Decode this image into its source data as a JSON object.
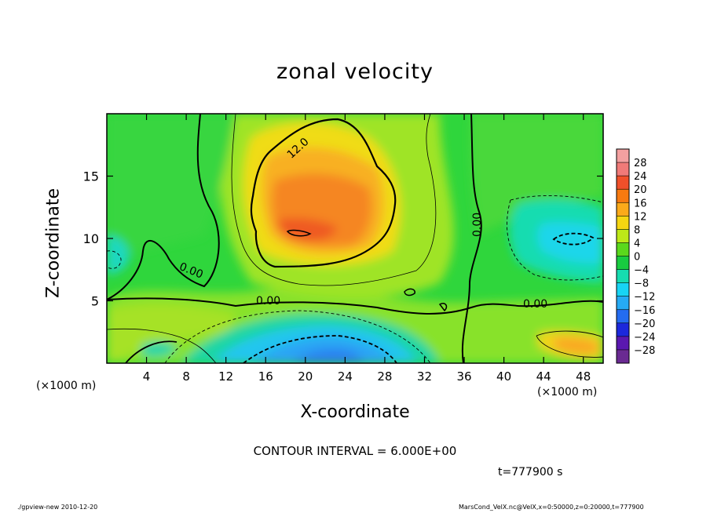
{
  "title": "zonal velocity",
  "xlabel": "X-coordinate",
  "ylabel": "Z-coordinate",
  "x_unit": "(×1000 m)",
  "y_unit": "(×1000 m)",
  "contour_interval_text": "CONTOUR INTERVAL = 6.000E+00",
  "time_text": "t=777900 s",
  "footer_left": "./gpview-new  2010-12-20",
  "footer_right": "MarsCond_VelX.nc@VelX,x=0:50000,z=0:20000,t=777900",
  "chart_data": {
    "type": "heatmap",
    "title": "zonal velocity",
    "xlabel": "X-coordinate",
    "ylabel": "Z-coordinate",
    "xlim": [
      0,
      50
    ],
    "ylim": [
      0,
      20
    ],
    "x_ticks": [
      4,
      8,
      12,
      16,
      20,
      24,
      28,
      32,
      36,
      40,
      44,
      48
    ],
    "y_ticks": [
      5,
      10,
      15
    ],
    "colorbar": {
      "labels": [
        "28",
        "24",
        "20",
        "16",
        "12",
        "8",
        "4",
        "0",
        "−4",
        "−8",
        "−12",
        "−16",
        "−20",
        "−24",
        "−28"
      ],
      "colors": [
        "#f3a0a0",
        "#f07a78",
        "#f0502a",
        "#f77a10",
        "#fbaa1a",
        "#f5d612",
        "#bde818",
        "#5ad81c",
        "#18cc40",
        "#16dcb0",
        "#18d4f4",
        "#26aaf4",
        "#246cf0",
        "#1c28dc",
        "#5a18b0",
        "#6a2a92"
      ]
    },
    "contour_labels": [
      "12.0",
      "0.00",
      "0.00",
      "0.00",
      "0.00"
    ],
    "features": [
      {
        "name": "positive jet core",
        "x_range": [
          14,
          30
        ],
        "z_range": [
          7.5,
          19
        ],
        "max_value": 16
      },
      {
        "name": "negative region lower",
        "x_range": [
          16,
          32
        ],
        "z_range": [
          0,
          3
        ],
        "min_value": -12
      },
      {
        "name": "negative region right",
        "x_range": [
          40,
          50
        ],
        "z_range": [
          8,
          12
        ],
        "min_value": -12
      },
      {
        "name": "positive pocket lower right",
        "x_range": [
          43,
          49
        ],
        "z_range": [
          0.5,
          2.5
        ],
        "max_value": 16
      }
    ]
  }
}
